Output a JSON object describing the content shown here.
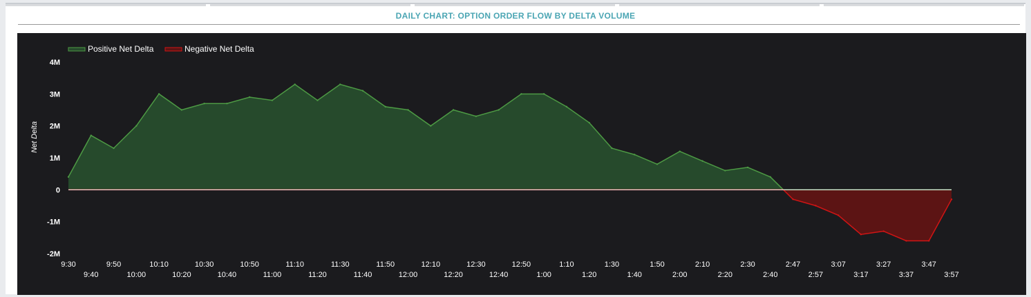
{
  "header": {
    "title": "DAILY CHART: OPTION ORDER FLOW BY DELTA VOLUME"
  },
  "colors": {
    "title": "#4aa5b3",
    "background": "#1b1b1e",
    "positive_line": "#4d9a44",
    "positive_fill": "#264a2c",
    "negative_line": "#d11414",
    "negative_fill": "#5c1414",
    "zero_line": "#ffffff",
    "text": "#ffffff"
  },
  "chart_data": {
    "type": "area",
    "title": "DAILY CHART: OPTION ORDER FLOW BY DELTA VOLUME",
    "xlabel": "",
    "ylabel": "Net Delta",
    "ylim": [
      -2000000,
      4000000
    ],
    "yticks": [
      {
        "value": 4000000,
        "label": "4M"
      },
      {
        "value": 3000000,
        "label": "3M"
      },
      {
        "value": 2000000,
        "label": "2M"
      },
      {
        "value": 1000000,
        "label": "1M"
      },
      {
        "value": 0,
        "label": "0"
      },
      {
        "value": -1000000,
        "label": "-1M"
      },
      {
        "value": -2000000,
        "label": "-2M"
      }
    ],
    "xticks_row1": [
      "9:30",
      "9:50",
      "10:10",
      "10:30",
      "10:50",
      "11:10",
      "11:30",
      "11:50",
      "12:10",
      "12:30",
      "12:50",
      "1:10",
      "1:30",
      "1:50",
      "2:10",
      "2:30",
      "2:47",
      "3:07",
      "3:27",
      "3:47"
    ],
    "xticks_row2": [
      "9:40",
      "10:00",
      "10:20",
      "10:40",
      "11:00",
      "11:20",
      "11:40",
      "12:00",
      "12:20",
      "12:40",
      "1:00",
      "1:20",
      "1:40",
      "2:00",
      "2:20",
      "2:40",
      "2:57",
      "3:17",
      "3:37",
      "3:57"
    ],
    "legend": {
      "position": "top-left",
      "entries": [
        "Positive Net Delta",
        "Negative Net Delta"
      ]
    },
    "grid": false,
    "series": [
      {
        "name": "Net Delta",
        "x": [
          "9:30",
          "9:40",
          "9:50",
          "10:00",
          "10:10",
          "10:20",
          "10:30",
          "10:40",
          "10:50",
          "11:00",
          "11:10",
          "11:20",
          "11:30",
          "11:40",
          "11:50",
          "12:00",
          "12:10",
          "12:20",
          "12:30",
          "12:40",
          "12:50",
          "1:00",
          "1:10",
          "1:20",
          "1:30",
          "1:40",
          "1:50",
          "2:00",
          "2:10",
          "2:20",
          "2:30",
          "2:40",
          "2:47",
          "2:57",
          "3:07",
          "3:17",
          "3:27",
          "3:37",
          "3:47",
          "3:57"
        ],
        "values": [
          400000,
          1700000,
          1300000,
          2000000,
          3000000,
          2500000,
          2700000,
          2700000,
          2900000,
          2800000,
          3300000,
          2800000,
          3300000,
          3100000,
          2600000,
          2500000,
          2000000,
          2500000,
          2300000,
          2500000,
          3000000,
          3000000,
          2600000,
          2100000,
          1300000,
          1100000,
          800000,
          1200000,
          900000,
          600000,
          700000,
          400000,
          -300000,
          -500000,
          -800000,
          -1400000,
          -1300000,
          -1600000,
          -1600000,
          -300000
        ]
      }
    ]
  }
}
